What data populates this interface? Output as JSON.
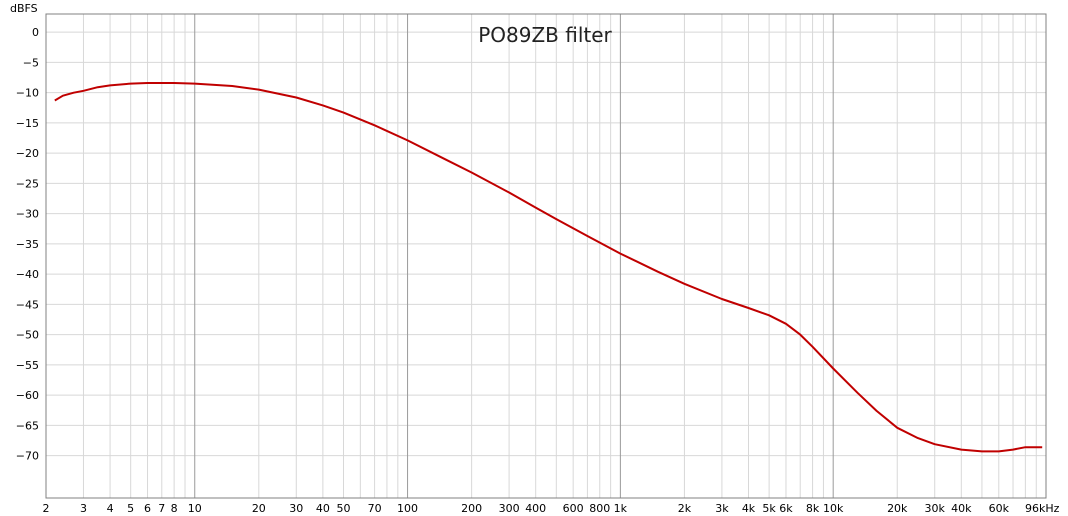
{
  "chart_data": {
    "type": "line",
    "title": "PO89ZB filter",
    "ylabel": "dBFS",
    "xlabel": "",
    "x_scale": "log",
    "xlim": [
      2,
      100000
    ],
    "ylim": [
      -77,
      3
    ],
    "grid": true,
    "y_ticks": [
      0,
      -5,
      -10,
      -15,
      -20,
      -25,
      -30,
      -35,
      -40,
      -45,
      -50,
      -55,
      -60,
      -65,
      -70
    ],
    "x_ticks": [
      {
        "value": 2,
        "label": "2"
      },
      {
        "value": 3,
        "label": "3"
      },
      {
        "value": 4,
        "label": "4"
      },
      {
        "value": 5,
        "label": "5"
      },
      {
        "value": 6,
        "label": "6"
      },
      {
        "value": 7,
        "label": "7"
      },
      {
        "value": 8,
        "label": "8"
      },
      {
        "value": 10,
        "label": "10"
      },
      {
        "value": 20,
        "label": "20"
      },
      {
        "value": 30,
        "label": "30"
      },
      {
        "value": 40,
        "label": "40"
      },
      {
        "value": 50,
        "label": "50"
      },
      {
        "value": 70,
        "label": "70"
      },
      {
        "value": 100,
        "label": "100"
      },
      {
        "value": 200,
        "label": "200"
      },
      {
        "value": 300,
        "label": "300"
      },
      {
        "value": 400,
        "label": "400"
      },
      {
        "value": 600,
        "label": "600"
      },
      {
        "value": 800,
        "label": "800"
      },
      {
        "value": 1000,
        "label": "1k"
      },
      {
        "value": 2000,
        "label": "2k"
      },
      {
        "value": 3000,
        "label": "3k"
      },
      {
        "value": 4000,
        "label": "4k"
      },
      {
        "value": 5000,
        "label": "5k"
      },
      {
        "value": 6000,
        "label": "6k"
      },
      {
        "value": 8000,
        "label": "8k"
      },
      {
        "value": 10000,
        "label": "10k"
      },
      {
        "value": 20000,
        "label": "20k"
      },
      {
        "value": 30000,
        "label": "30k"
      },
      {
        "value": 40000,
        "label": "40k"
      },
      {
        "value": 60000,
        "label": "60k"
      },
      {
        "value": 96000,
        "label": "96kHz"
      }
    ],
    "series": [
      {
        "color": "#c00000",
        "x": [
          2.2,
          2.4,
          2.7,
          3,
          3.5,
          4,
          5,
          6,
          7,
          8,
          10,
          15,
          20,
          30,
          40,
          50,
          70,
          100,
          150,
          200,
          300,
          400,
          500,
          700,
          1000,
          1500,
          2000,
          3000,
          4000,
          5000,
          6000,
          7000,
          8000,
          10000,
          13000,
          16000,
          20000,
          25000,
          30000,
          40000,
          50000,
          60000,
          70000,
          80000,
          90000,
          96000
        ],
        "y": [
          -11.3,
          -10.5,
          -10.0,
          -9.7,
          -9.1,
          -8.8,
          -8.5,
          -8.4,
          -8.4,
          -8.4,
          -8.5,
          -8.9,
          -9.5,
          -10.8,
          -12.1,
          -13.3,
          -15.4,
          -17.9,
          -21.0,
          -23.2,
          -26.5,
          -29.0,
          -30.9,
          -33.7,
          -36.6,
          -39.6,
          -41.6,
          -44.1,
          -45.6,
          -46.8,
          -48.2,
          -50.0,
          -52.0,
          -55.6,
          -59.6,
          -62.6,
          -65.4,
          -67.1,
          -68.1,
          -69.0,
          -69.3,
          -69.3,
          -69.0,
          -68.6,
          -68.6,
          -68.6
        ]
      }
    ]
  }
}
